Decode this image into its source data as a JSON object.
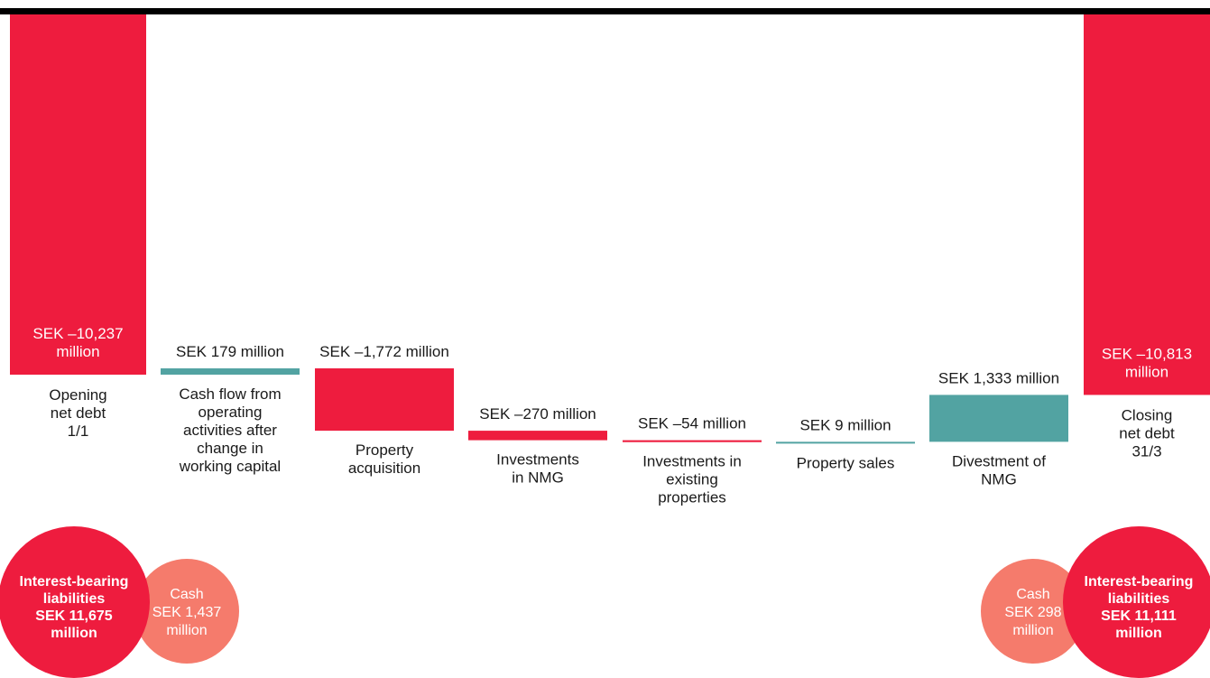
{
  "colors": {
    "negative": "#EE1C3E",
    "positive": "#52A3A2",
    "cash": "#F57B6C",
    "label": "#1a1a1a",
    "inside_label": "#ffffff",
    "rule": "#000000"
  },
  "chart_data": {
    "type": "waterfall",
    "title": "",
    "unit": "SEK million",
    "steps": [
      {
        "label": [
          "Opening",
          "net debt",
          "1/1"
        ],
        "value": -10237,
        "kind": "total",
        "value_label": [
          "SEK –10,237",
          "million"
        ]
      },
      {
        "label": [
          "Cash flow from",
          "operating",
          "activities after",
          "change in",
          "working capital"
        ],
        "value": 179,
        "kind": "change",
        "value_label": [
          "SEK 179 million"
        ]
      },
      {
        "label": [
          "Property",
          "acquisition"
        ],
        "value": -1772,
        "kind": "change",
        "value_label": [
          "SEK –1,772 million"
        ]
      },
      {
        "label": [
          "Investments",
          "in NMG"
        ],
        "value": -270,
        "kind": "change",
        "value_label": [
          "SEK –270 million"
        ]
      },
      {
        "label": [
          "Investments in",
          "existing",
          "properties"
        ],
        "value": -54,
        "kind": "change",
        "value_label": [
          "SEK –54 million"
        ]
      },
      {
        "label": [
          "Property sales"
        ],
        "value": 9,
        "kind": "change",
        "value_label": [
          "SEK 9 million"
        ]
      },
      {
        "label": [
          "Divestment of",
          "NMG"
        ],
        "value": 1333,
        "kind": "change",
        "value_label": [
          "SEK 1,333 million"
        ]
      },
      {
        "label": [
          "Closing",
          "net debt",
          "31/3"
        ],
        "value": -10813,
        "kind": "total",
        "value_label": [
          "SEK –10,813",
          "million"
        ]
      }
    ],
    "composition": [
      {
        "side": "opening",
        "liabilities": {
          "value": 11675,
          "label": [
            "Interest-bearing",
            "liabilities",
            "SEK 11,675",
            "million"
          ]
        },
        "cash": {
          "value": 1437,
          "label": [
            "Cash",
            "SEK 1,437",
            "million"
          ]
        }
      },
      {
        "side": "closing",
        "liabilities": {
          "value": 11111,
          "label": [
            "Interest-bearing",
            "liabilities",
            "SEK 11,111",
            "million"
          ]
        },
        "cash": {
          "value": 298,
          "label": [
            "Cash",
            "SEK 298",
            "million"
          ]
        }
      }
    ]
  }
}
